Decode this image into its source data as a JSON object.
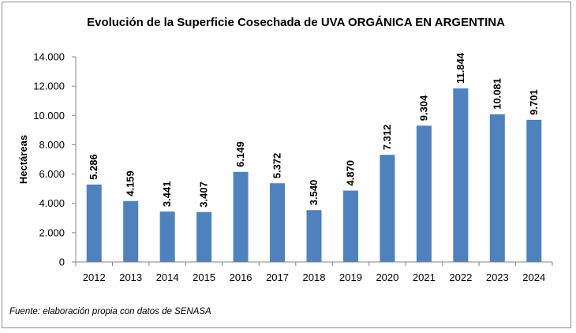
{
  "chart_data": {
    "type": "bar",
    "title": "Evolución de la Superficie Cosechada de UVA ORGÁNICA EN ARGENTINA",
    "xlabel": "",
    "ylabel": "Hectáreas",
    "categories": [
      "2012",
      "2013",
      "2014",
      "2015",
      "2016",
      "2017",
      "2018",
      "2019",
      "2020",
      "2021",
      "2022",
      "2023",
      "2024"
    ],
    "values": [
      5286,
      4159,
      3441,
      3407,
      6149,
      5372,
      3540,
      4870,
      7312,
      9304,
      11844,
      10081,
      9701
    ],
    "value_labels": [
      "5.286",
      "4.159",
      "3.441",
      "3.407",
      "6.149",
      "5.372",
      "3.540",
      "4.870",
      "7.312",
      "9.304",
      "11.844",
      "10.081",
      "9.701"
    ],
    "yticks": [
      0,
      2000,
      4000,
      6000,
      8000,
      10000,
      12000,
      14000
    ],
    "ytick_labels": [
      "0",
      "2.000",
      "4.000",
      "6.000",
      "8.000",
      "10.000",
      "12.000",
      "14.000"
    ],
    "ylim": [
      0,
      14000
    ],
    "grid": false,
    "legend": false,
    "bar_color": "#4f81bd",
    "source": "Fuente: elaboración propia con datos de SENASA"
  }
}
